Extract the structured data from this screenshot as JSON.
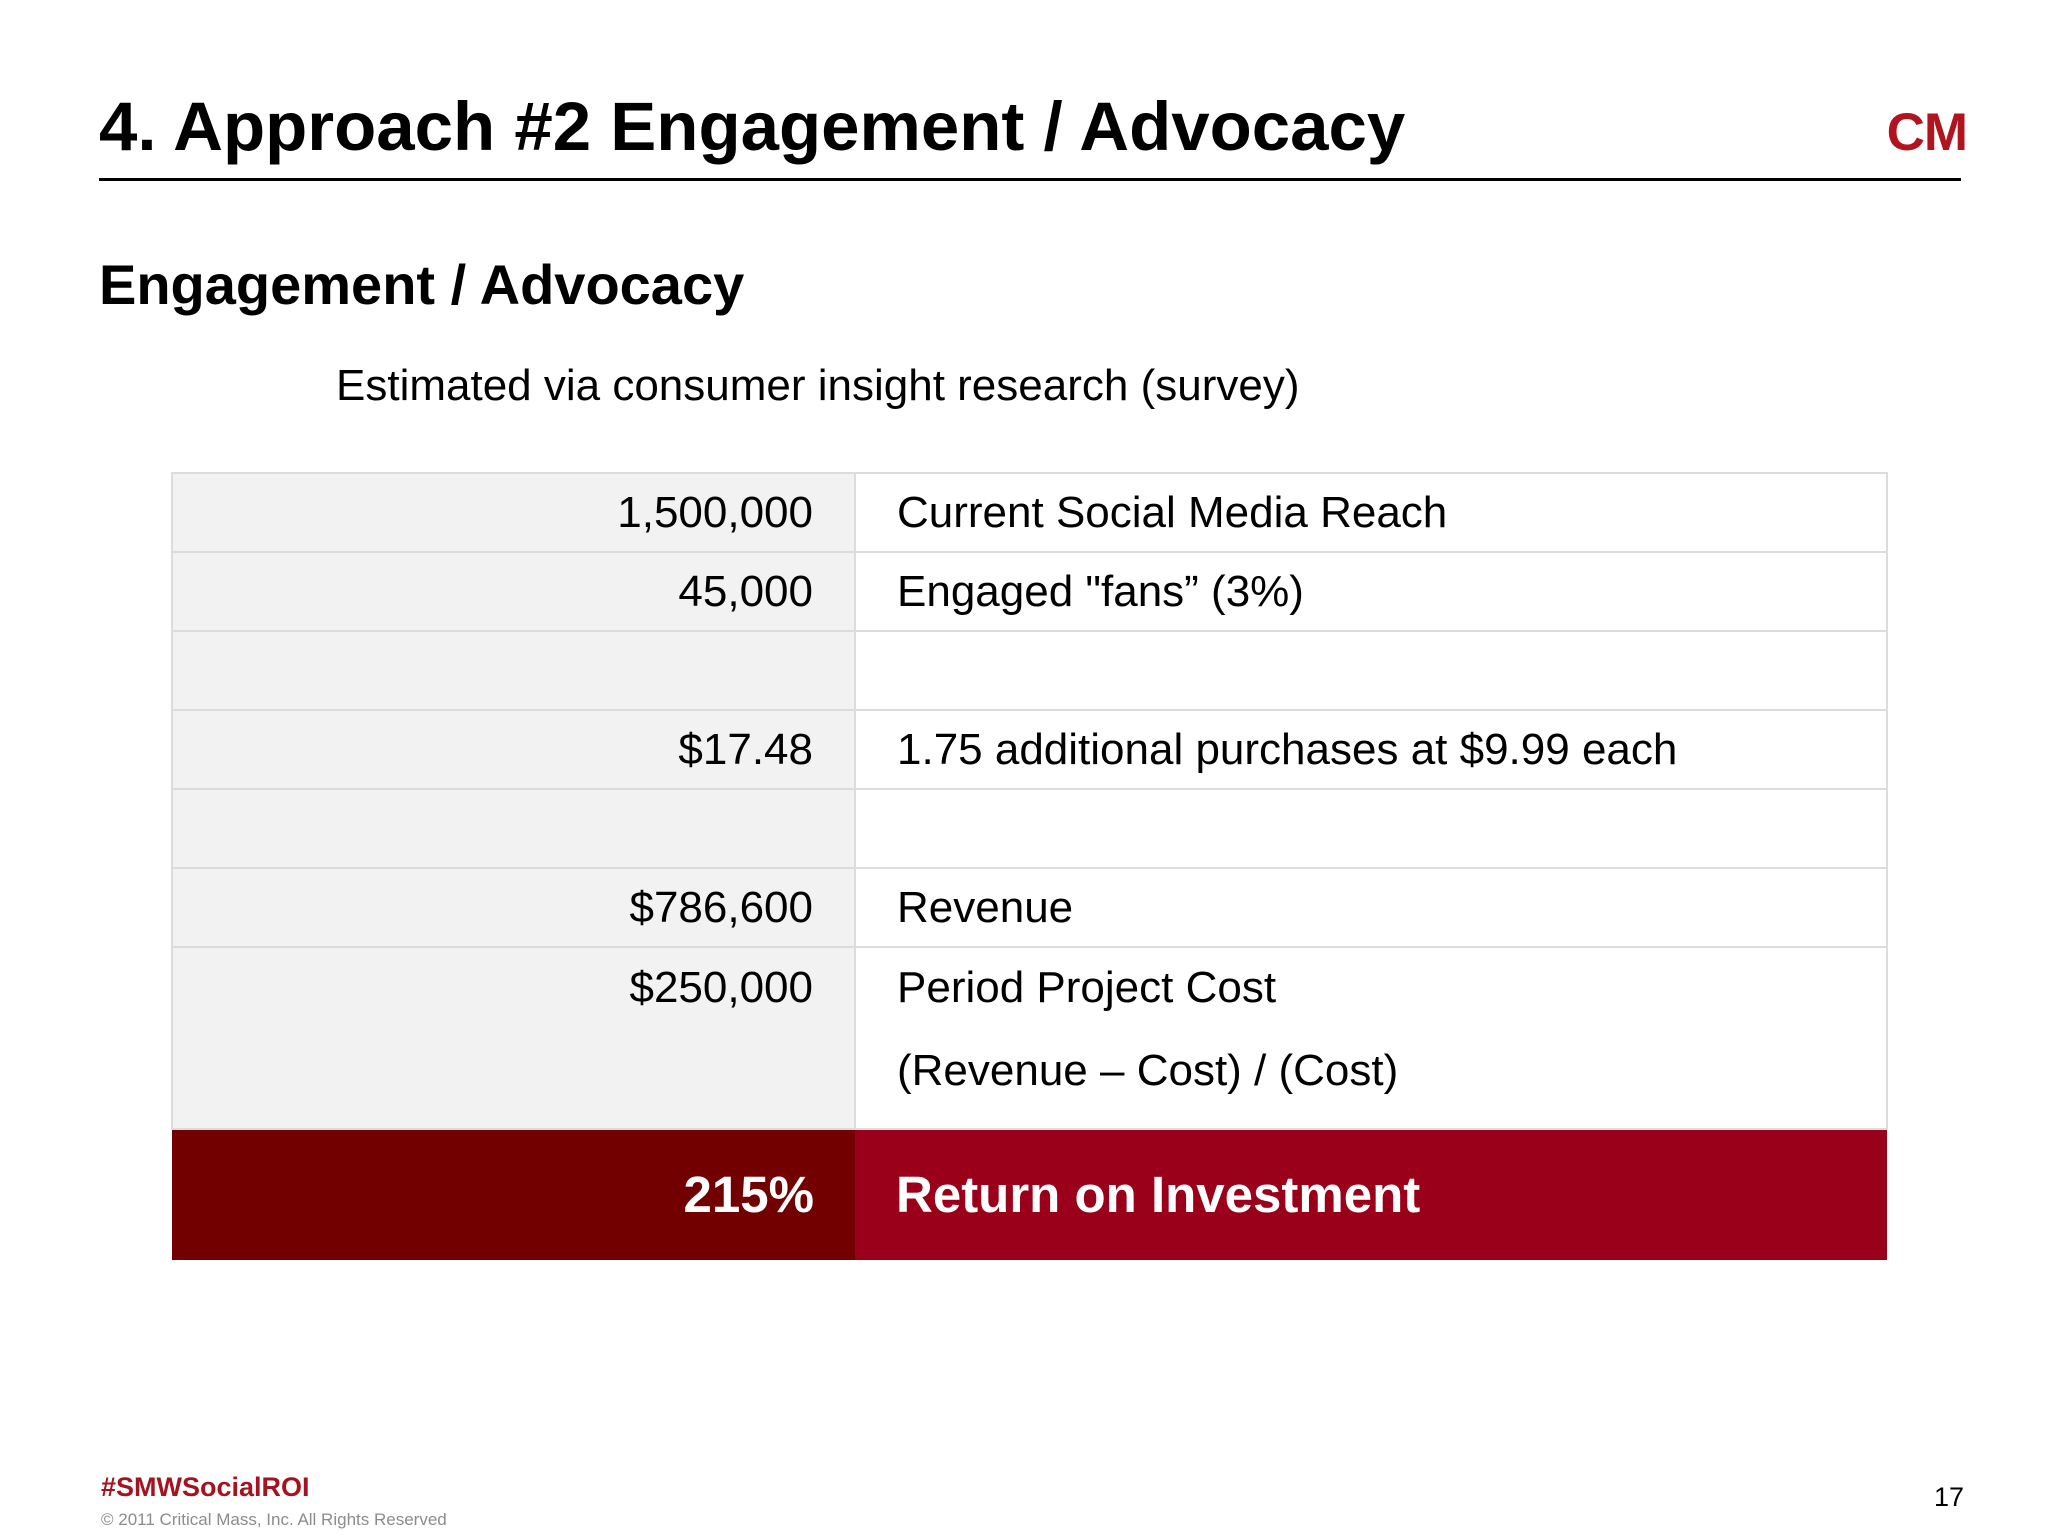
{
  "header": {
    "title": "4. Approach #2 Engagement / Advocacy",
    "logo_text": "CM"
  },
  "section": {
    "title": "Engagement / Advocacy",
    "subtitle": "Estimated via consumer insight research (survey)"
  },
  "table": {
    "rows": [
      {
        "value": "1,500,000",
        "description": "Current Social Media Reach"
      },
      {
        "value": "45,000",
        "description": "Engaged \"fans” (3%)"
      },
      {
        "value": "",
        "description": ""
      },
      {
        "value": "$17.48",
        "description": "1.75 additional purchases at $9.99 each"
      },
      {
        "value": "",
        "description": ""
      },
      {
        "value": "$786,600",
        "description": "Revenue"
      },
      {
        "value": "$250,000",
        "description": "Period Project Cost",
        "formula": "(Revenue – Cost) / (Cost)"
      }
    ],
    "result": {
      "value": "215%",
      "label": "Return on Investment"
    }
  },
  "footer": {
    "hashtag": "#SMWSocialROI",
    "copyright": "© 2011 Critical Mass, Inc. All Rights Reserved",
    "page_number": "17"
  },
  "colors": {
    "brand_red": "#b0141f",
    "result_value_bg": "#720001",
    "result_label_bg": "#9a0019",
    "value_cell_bg": "#f2f2f2"
  }
}
